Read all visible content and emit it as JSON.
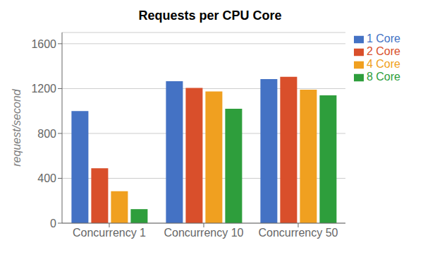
{
  "chart_data": {
    "type": "bar",
    "title": "Requests per CPU Core",
    "ylabel": "request/second",
    "categories": [
      "Concurrency 1",
      "Concurrency 10",
      "Concurrency 50"
    ],
    "series": [
      {
        "name": "1 Core",
        "color": "#4472C4",
        "values": [
          1000,
          1265,
          1285
        ]
      },
      {
        "name": "2 Core",
        "color": "#D94F2B",
        "values": [
          490,
          1205,
          1305
        ]
      },
      {
        "name": "4 Core",
        "color": "#F0A020",
        "values": [
          285,
          1175,
          1190
        ]
      },
      {
        "name": "8 Core",
        "color": "#2E9E3C",
        "values": [
          125,
          1020,
          1140
        ]
      }
    ],
    "ylim": [
      0,
      1700
    ],
    "yticks": [
      0,
      400,
      800,
      1200,
      1600
    ],
    "grid": true,
    "legend": "right"
  }
}
